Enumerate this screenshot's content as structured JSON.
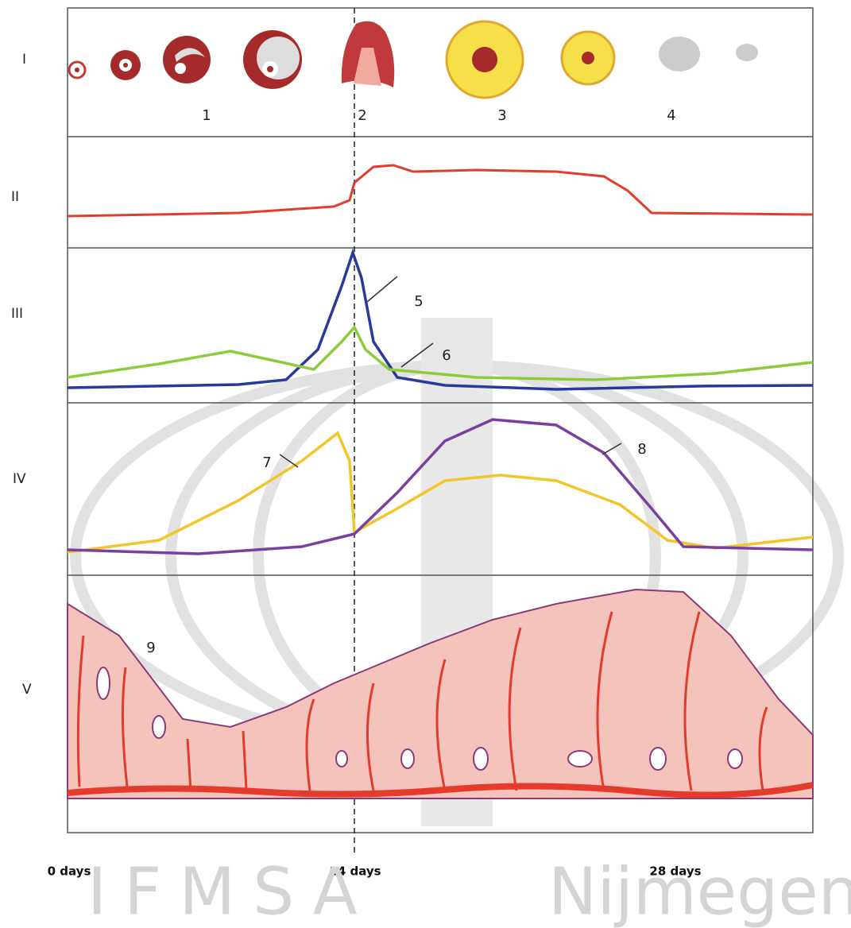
{
  "rows": [
    "I",
    "II",
    "III",
    "IV",
    "V"
  ],
  "markers": [
    "1",
    "2",
    "3",
    "4",
    "5",
    "6",
    "7",
    "8",
    "9"
  ],
  "axis": [
    "0 days",
    "14 days",
    "28 days"
  ],
  "watermark": {
    "left": "IFMSA",
    "right": "Nijmegen"
  }
}
